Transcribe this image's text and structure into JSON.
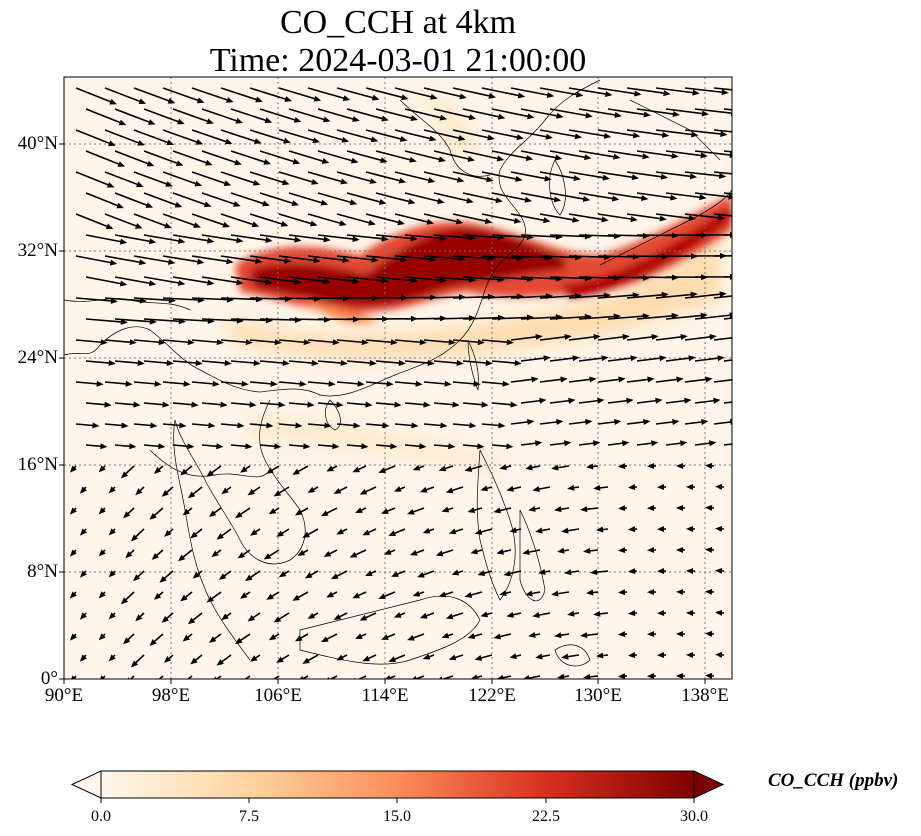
{
  "title": {
    "line1": "CO_CCH at 4km",
    "line2": "Time: 2024-03-01 21:00:00"
  },
  "map": {
    "projection": "PlateCarree",
    "lon_range": [
      90,
      140
    ],
    "lat_range": [
      0,
      45
    ],
    "gridlines": "dotted",
    "lat_labels": [
      "0°",
      "8°N",
      "16°N",
      "24°N",
      "32°N",
      "40°N"
    ],
    "lon_labels": [
      "90°E",
      "98°E",
      "106°E",
      "114°E",
      "122°E",
      "130°E",
      "138°E"
    ],
    "field": "CO_CCH",
    "wind_vectors": true
  },
  "colorbar": {
    "label": "CO_CCH (ppbv)",
    "ticks": [
      "0.0",
      "7.5",
      "15.0",
      "22.5",
      "30.0"
    ],
    "range": [
      0,
      30
    ],
    "extend": "both",
    "cmap": "OrRd",
    "colors": [
      "#fff7ec",
      "#fdd49e",
      "#fc8d59",
      "#d7301f",
      "#7f0000"
    ]
  }
}
